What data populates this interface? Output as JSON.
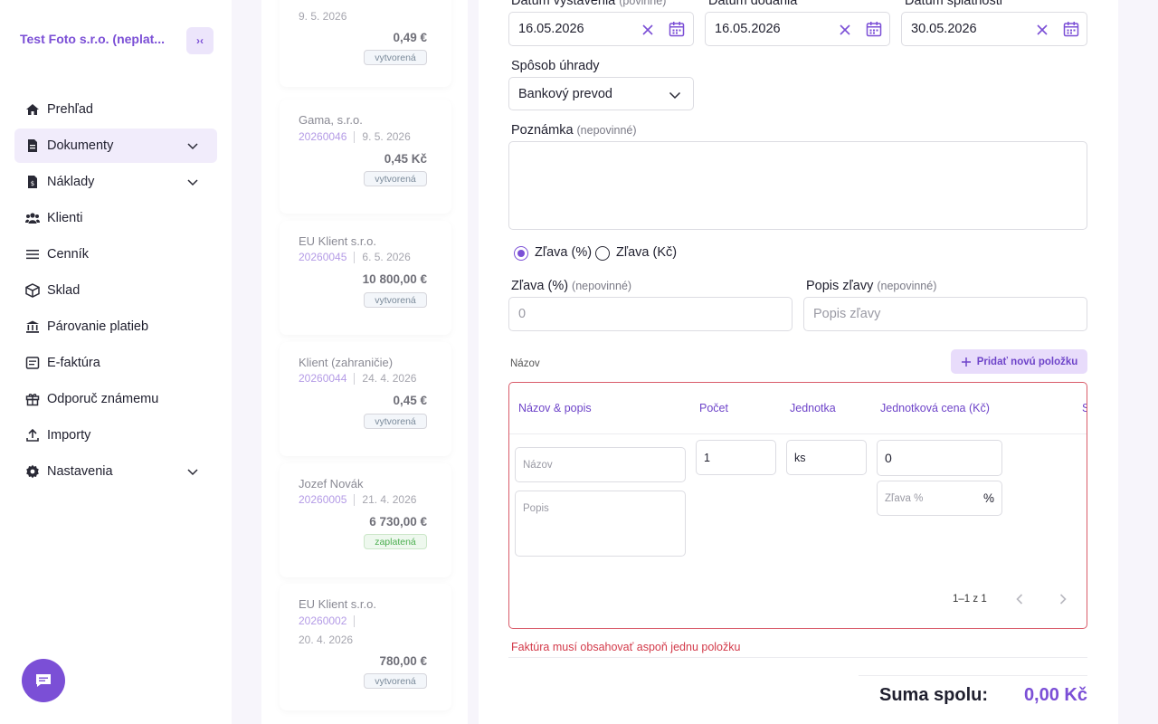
{
  "sidebar": {
    "company": "Test Foto s.r.o. (neplat...",
    "collapse_glyph": "›‹",
    "items": [
      {
        "label": "Prehľad",
        "icon": "home-icon"
      },
      {
        "label": "Dokumenty",
        "icon": "document-icon",
        "active": true,
        "expandable": true
      },
      {
        "label": "Náklady",
        "icon": "receipt-icon",
        "expandable": true
      },
      {
        "label": "Klienti",
        "icon": "users-icon"
      },
      {
        "label": "Cenník",
        "icon": "list-icon"
      },
      {
        "label": "Sklad",
        "icon": "box-icon"
      },
      {
        "label": "Párovanie platieb",
        "icon": "bank-icon"
      },
      {
        "label": "E-faktúra",
        "icon": "einvoice-icon"
      },
      {
        "label": "Odporuč známemu",
        "icon": "gift-icon"
      },
      {
        "label": "Importy",
        "icon": "upload-icon"
      },
      {
        "label": "Nastavenia",
        "icon": "gear-icon",
        "expandable": true
      }
    ]
  },
  "documents": [
    {
      "date": "9. 5. 2026",
      "amount": "0,49 €",
      "status": "vytvorená"
    },
    {
      "client": "Gama, s.r.o.",
      "number": "20260046",
      "date": "9. 5. 2026",
      "amount": "0,45 Kč",
      "status": "vytvorená"
    },
    {
      "client": "EU Klient s.r.o.",
      "number": "20260045",
      "date": "6. 5. 2026",
      "amount": "10 800,00 €",
      "status": "vytvorená"
    },
    {
      "client": "Klient (zahraničie)",
      "number": "20260044",
      "date": "24. 4. 2026",
      "amount": "0,45 €",
      "status": "vytvorená"
    },
    {
      "client": "Jozef Novák",
      "number": "20260005",
      "date": "21. 4. 2026",
      "amount": "6 730,00 €",
      "status": "zaplatená"
    },
    {
      "client": "EU Klient s.r.o.",
      "number": "20260002",
      "date": "20. 4. 2026",
      "amount": "780,00 €",
      "status": "vytvorená"
    }
  ],
  "form": {
    "issue_date": {
      "label": "Dátum vystavenia",
      "optional": "(povinné)",
      "value": "16.05.2026"
    },
    "delivery_date": {
      "label": "Dátum dodania",
      "value": "16.05.2026"
    },
    "due_date": {
      "label": "Dátum splatnosti",
      "value": "30.05.2026"
    },
    "payment": {
      "label": "Spôsob úhrady",
      "value": "Bankový prevod"
    },
    "note": {
      "label": "Poznámka",
      "optional": "(nepovinné)"
    },
    "discount_mode": {
      "percent": "Zľava (%)",
      "amount": "Zľava (Kč)",
      "selected": "percent"
    },
    "discount": {
      "label": "Zľava (%)",
      "optional": "(nepovinné)",
      "placeholder": "0"
    },
    "discount_desc": {
      "label": "Popis zľavy",
      "optional": "(nepovinné)",
      "placeholder": "Popis zľavy"
    },
    "items_label": "Názov",
    "add_item": "Pridať novú položku",
    "table": {
      "headers": [
        "Názov & popis",
        "Počet",
        "Jednotka",
        "Jednotková cena (Kč)",
        "S"
      ],
      "row": {
        "name_placeholder": "Názov",
        "desc_placeholder": "Popis",
        "quantity": "1",
        "unit": "ks",
        "price": "0",
        "discount_placeholder": "Zľava %",
        "discount_suffix": "%"
      },
      "pager": "1–1 z 1"
    },
    "error": "Faktúra musí obsahovať aspoň jednu položku",
    "total_label": "Suma spolu:",
    "total_value": "0,00 Kč"
  }
}
